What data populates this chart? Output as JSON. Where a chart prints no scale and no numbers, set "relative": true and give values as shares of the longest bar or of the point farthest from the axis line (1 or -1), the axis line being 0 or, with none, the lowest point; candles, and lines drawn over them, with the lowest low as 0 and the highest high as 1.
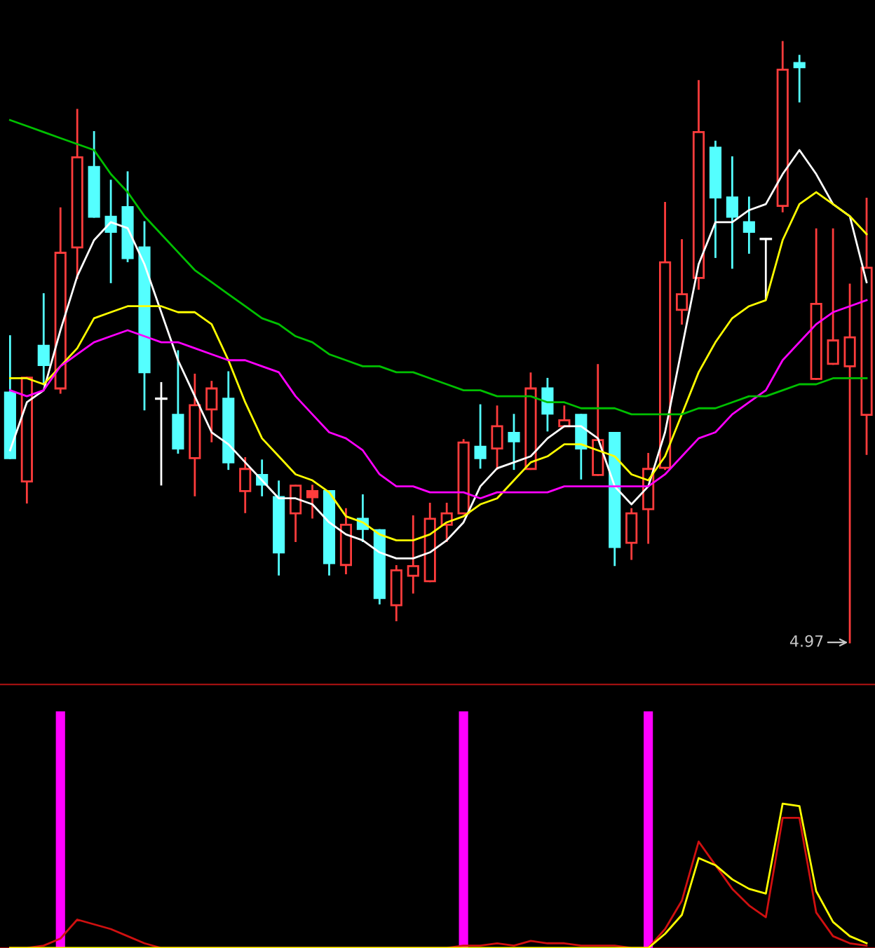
{
  "chart_data": [
    {
      "type": "candlestick",
      "relative": true,
      "legend": false,
      "categories": [
        null,
        null,
        null,
        null,
        null,
        null,
        null,
        null,
        null,
        null,
        null,
        null,
        null,
        null,
        null,
        null,
        null,
        null,
        null,
        null,
        null,
        null,
        null,
        null,
        null,
        null,
        null,
        null,
        null,
        null,
        null,
        null,
        null,
        null,
        null,
        null,
        null,
        null,
        null,
        null,
        null,
        null,
        null,
        null,
        null,
        null,
        null,
        null,
        null,
        null,
        null,
        null
      ],
      "ohlc": [
        [
          0.416,
          0.51,
          0.307,
          0.307
        ],
        [
          0.268,
          0.441,
          0.233,
          0.441
        ],
        [
          0.494,
          0.58,
          0.43,
          0.462
        ],
        [
          0.423,
          0.723,
          0.416,
          0.649
        ],
        [
          0.658,
          0.887,
          0.607,
          0.808
        ],
        [
          0.792,
          0.85,
          0.709,
          0.709
        ],
        [
          0.709,
          0.769,
          0.6,
          0.684
        ],
        [
          0.725,
          0.783,
          0.635,
          0.64
        ],
        [
          0.658,
          0.7,
          0.388,
          0.45
        ],
        [
          0.406,
          0.432,
          0.263,
          0.406
        ],
        [
          0.379,
          0.485,
          0.316,
          0.323
        ],
        [
          0.307,
          0.446,
          0.245,
          0.395
        ],
        [
          0.388,
          0.434,
          0.335,
          0.423
        ],
        [
          0.406,
          0.45,
          0.289,
          0.3
        ],
        [
          0.252,
          0.307,
          0.217,
          0.289
        ],
        [
          0.279,
          0.303,
          0.245,
          0.263
        ],
        [
          0.242,
          0.268,
          0.113,
          0.15
        ],
        [
          0.215,
          0.261,
          0.169,
          0.261
        ],
        [
          0.252,
          0.261,
          0.208,
          0.242
        ],
        [
          0.252,
          0.252,
          0.113,
          0.132
        ],
        [
          0.129,
          0.222,
          0.115,
          0.196
        ],
        [
          0.206,
          0.245,
          0.169,
          0.189
        ],
        [
          0.187,
          0.187,
          0.065,
          0.074
        ],
        [
          0.062,
          0.127,
          0.037,
          0.12
        ],
        [
          0.111,
          0.21,
          0.083,
          0.127
        ],
        [
          0.102,
          0.231,
          0.102,
          0.206
        ],
        [
          0.196,
          0.231,
          0.169,
          0.215
        ],
        [
          0.215,
          0.337,
          0.215,
          0.333
        ],
        [
          0.326,
          0.395,
          0.291,
          0.307
        ],
        [
          0.323,
          0.393,
          0.289,
          0.36
        ],
        [
          0.349,
          0.379,
          0.289,
          0.335
        ],
        [
          0.289,
          0.448,
          0.289,
          0.423
        ],
        [
          0.423,
          0.439,
          0.353,
          0.381
        ],
        [
          0.36,
          0.393,
          0.36,
          0.37
        ],
        [
          0.379,
          0.379,
          0.273,
          0.323
        ],
        [
          0.279,
          0.462,
          0.279,
          0.337
        ],
        [
          0.349,
          0.349,
          0.129,
          0.159
        ],
        [
          0.166,
          0.222,
          0.139,
          0.215
        ],
        [
          0.222,
          0.314,
          0.166,
          0.289
        ],
        [
          0.291,
          0.732,
          0.289,
          0.633
        ],
        [
          0.554,
          0.67,
          0.531,
          0.58
        ],
        [
          0.607,
          0.935,
          0.589,
          0.85
        ],
        [
          0.824,
          0.834,
          0.642,
          0.741
        ],
        [
          0.741,
          0.808,
          0.624,
          0.709
        ],
        [
          0.7,
          0.741,
          0.649,
          0.684
        ],
        [
          0.672,
          0.672,
          0.573,
          0.672
        ],
        [
          0.727,
          1.0,
          0.718,
          0.954
        ],
        [
          0.965,
          0.977,
          0.901,
          0.958
        ],
        [
          0.439,
          0.688,
          0.439,
          0.564
        ],
        [
          0.464,
          0.688,
          0.464,
          0.503
        ],
        [
          0.46,
          0.596,
          0.0,
          0.508
        ],
        [
          0.379,
          0.739,
          0.314,
          0.624
        ]
      ],
      "colors": [
        "#54ffff",
        "#ff3c3c",
        "#54ffff",
        "#ff3c3c",
        "#ff3c3c",
        "#54ffff",
        "#54ffff",
        "#54ffff",
        "#54ffff",
        "#ffffff",
        "#54ffff",
        "#ff3c3c",
        "#ff3c3c",
        "#54ffff",
        "#ff3c3c",
        "#54ffff",
        "#54ffff",
        "#ff3c3c",
        "#ff3c3c",
        "#54ffff",
        "#ff3c3c",
        "#54ffff",
        "#54ffff",
        "#ff3c3c",
        "#ff3c3c",
        "#ff3c3c",
        "#ff3c3c",
        "#ff3c3c",
        "#54ffff",
        "#ff3c3c",
        "#54ffff",
        "#ff3c3c",
        "#54ffff",
        "#ff3c3c",
        "#54ffff",
        "#ff3c3c",
        "#54ffff",
        "#ff3c3c",
        "#ff3c3c",
        "#ff3c3c",
        "#ff3c3c",
        "#ff3c3c",
        "#54ffff",
        "#54ffff",
        "#54ffff",
        "#ffffff",
        "#ff3c3c",
        "#54ffff",
        "#ff3c3c",
        "#ff3c3c",
        "#ff3c3c",
        "#ff3c3c"
      ],
      "series": [
        {
          "type": "line",
          "color": "#ffffff",
          "values": [
            0.32,
            0.4,
            0.42,
            0.52,
            0.61,
            0.67,
            0.7,
            0.69,
            0.63,
            0.55,
            0.47,
            0.41,
            0.35,
            0.33,
            0.3,
            0.27,
            0.24,
            0.24,
            0.23,
            0.2,
            0.18,
            0.17,
            0.15,
            0.14,
            0.14,
            0.15,
            0.17,
            0.2,
            0.26,
            0.29,
            0.3,
            0.31,
            0.34,
            0.36,
            0.36,
            0.34,
            0.26,
            0.23,
            0.26,
            0.35,
            0.49,
            0.63,
            0.7,
            0.7,
            0.72,
            0.73,
            0.78,
            0.82,
            0.78,
            0.73,
            0.71,
            0.6
          ]
        },
        {
          "type": "line",
          "color": "#ffff00",
          "values": [
            0.44,
            0.44,
            0.43,
            0.46,
            0.49,
            0.54,
            0.55,
            0.56,
            0.56,
            0.56,
            0.55,
            0.55,
            0.53,
            0.47,
            0.4,
            0.34,
            0.31,
            0.28,
            0.27,
            0.25,
            0.21,
            0.2,
            0.18,
            0.17,
            0.17,
            0.18,
            0.2,
            0.21,
            0.23,
            0.24,
            0.27,
            0.3,
            0.31,
            0.33,
            0.33,
            0.32,
            0.31,
            0.28,
            0.27,
            0.31,
            0.38,
            0.45,
            0.5,
            0.54,
            0.56,
            0.57,
            0.67,
            0.73,
            0.75,
            0.73,
            0.71,
            0.68
          ]
        },
        {
          "type": "line",
          "color": "#ff00ff",
          "values": [
            0.42,
            0.41,
            0.42,
            0.46,
            0.48,
            0.5,
            0.51,
            0.52,
            0.51,
            0.5,
            0.5,
            0.49,
            0.48,
            0.47,
            0.47,
            0.46,
            0.45,
            0.41,
            0.38,
            0.35,
            0.34,
            0.32,
            0.28,
            0.26,
            0.26,
            0.25,
            0.25,
            0.25,
            0.24,
            0.25,
            0.25,
            0.25,
            0.25,
            0.26,
            0.26,
            0.26,
            0.26,
            0.26,
            0.26,
            0.28,
            0.31,
            0.34,
            0.35,
            0.38,
            0.4,
            0.42,
            0.47,
            0.5,
            0.53,
            0.55,
            0.56,
            0.57
          ]
        },
        {
          "type": "line",
          "color": "#00c000",
          "values": [
            0.87,
            0.86,
            0.85,
            0.84,
            0.83,
            0.82,
            0.78,
            0.75,
            0.71,
            0.68,
            0.65,
            0.62,
            0.6,
            0.58,
            0.56,
            0.54,
            0.53,
            0.51,
            0.5,
            0.48,
            0.47,
            0.46,
            0.46,
            0.45,
            0.45,
            0.44,
            0.43,
            0.42,
            0.42,
            0.41,
            0.41,
            0.41,
            0.4,
            0.4,
            0.39,
            0.39,
            0.39,
            0.38,
            0.38,
            0.38,
            0.38,
            0.39,
            0.39,
            0.4,
            0.41,
            0.41,
            0.42,
            0.43,
            0.43,
            0.44,
            0.44,
            0.44
          ]
        }
      ],
      "annotations": [
        "4.97"
      ]
    },
    {
      "type": "bar",
      "relative": true,
      "legend": false,
      "categories": [
        null,
        null,
        null,
        null,
        null,
        null,
        null,
        null,
        null,
        null,
        null,
        null,
        null,
        null,
        null,
        null,
        null,
        null,
        null,
        null,
        null,
        null,
        null,
        null,
        null,
        null,
        null,
        null,
        null,
        null,
        null,
        null,
        null,
        null,
        null,
        null,
        null,
        null,
        null,
        null,
        null,
        null,
        null,
        null,
        null,
        null,
        null,
        null,
        null,
        null,
        null,
        null
      ],
      "series": [
        {
          "type": "bar",
          "color": "#ff00ff",
          "values": [
            null,
            null,
            null,
            1,
            null,
            null,
            null,
            null,
            null,
            null,
            null,
            null,
            null,
            null,
            null,
            null,
            null,
            null,
            null,
            null,
            null,
            null,
            null,
            null,
            null,
            null,
            null,
            1,
            null,
            null,
            null,
            null,
            null,
            null,
            null,
            null,
            null,
            null,
            1,
            null,
            null,
            null,
            null,
            null,
            null,
            null,
            null,
            null,
            null,
            null,
            null,
            null
          ]
        },
        {
          "type": "line",
          "color": "#d01010",
          "values": [
            0,
            0,
            0.01,
            0.04,
            0.12,
            0.1,
            0.08,
            0.05,
            0.02,
            0,
            0,
            0,
            0,
            0,
            0,
            0,
            0,
            0,
            0,
            0,
            0,
            0,
            0,
            0,
            0,
            0,
            0,
            0.01,
            0.01,
            0.02,
            0.01,
            0.03,
            0.02,
            0.02,
            0.01,
            0.01,
            0.01,
            0,
            0,
            0.08,
            0.2,
            0.45,
            0.35,
            0.25,
            0.18,
            0.13,
            0.55,
            0.55,
            0.15,
            0.05,
            0.02,
            0.01
          ]
        },
        {
          "type": "line",
          "color": "#ffff00",
          "values": [
            0,
            0,
            0,
            0,
            0,
            0,
            0,
            0,
            0,
            0,
            0,
            0,
            0,
            0,
            0,
            0,
            0,
            0,
            0,
            0,
            0,
            0,
            0,
            0,
            0,
            0,
            0,
            0,
            0,
            0,
            0,
            0,
            0,
            0,
            0,
            0,
            0,
            0,
            0,
            0.06,
            0.14,
            0.38,
            0.35,
            0.29,
            0.25,
            0.23,
            0.61,
            0.6,
            0.24,
            0.11,
            0.05,
            0.02
          ]
        }
      ]
    }
  ]
}
